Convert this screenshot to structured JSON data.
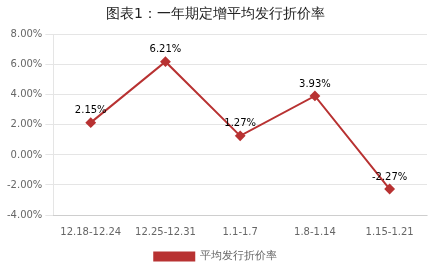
{
  "chart_data": {
    "type": "line",
    "title": "图表1：一年期定增平均发行折价率",
    "categories": [
      "12.18-12.24",
      "12.25-12.31",
      "1.1-1.7",
      "1.8-1.14",
      "1.15-1.21"
    ],
    "series": [
      {
        "name": "平均发行折价率",
        "color": "#b83232",
        "marker": "diamond",
        "values": [
          2.15,
          6.21,
          1.27,
          3.93,
          -2.27
        ],
        "value_labels": [
          "2.15%",
          "6.21%",
          "1.27%",
          "3.93%",
          "-2.27%"
        ]
      }
    ],
    "ylim": [
      -4.0,
      8.0
    ],
    "yticks": [
      {
        "value": -4.0,
        "label": "-4.00%"
      },
      {
        "value": -2.0,
        "label": "-2.00%"
      },
      {
        "value": 0.0,
        "label": "0.00%"
      },
      {
        "value": 2.0,
        "label": "2.00%"
      },
      {
        "value": 4.0,
        "label": "4.00%"
      },
      {
        "value": 6.0,
        "label": "6.00%"
      },
      {
        "value": 8.0,
        "label": "8.00%"
      }
    ],
    "grid": true,
    "legend": "bottom",
    "data_labels": true
  }
}
